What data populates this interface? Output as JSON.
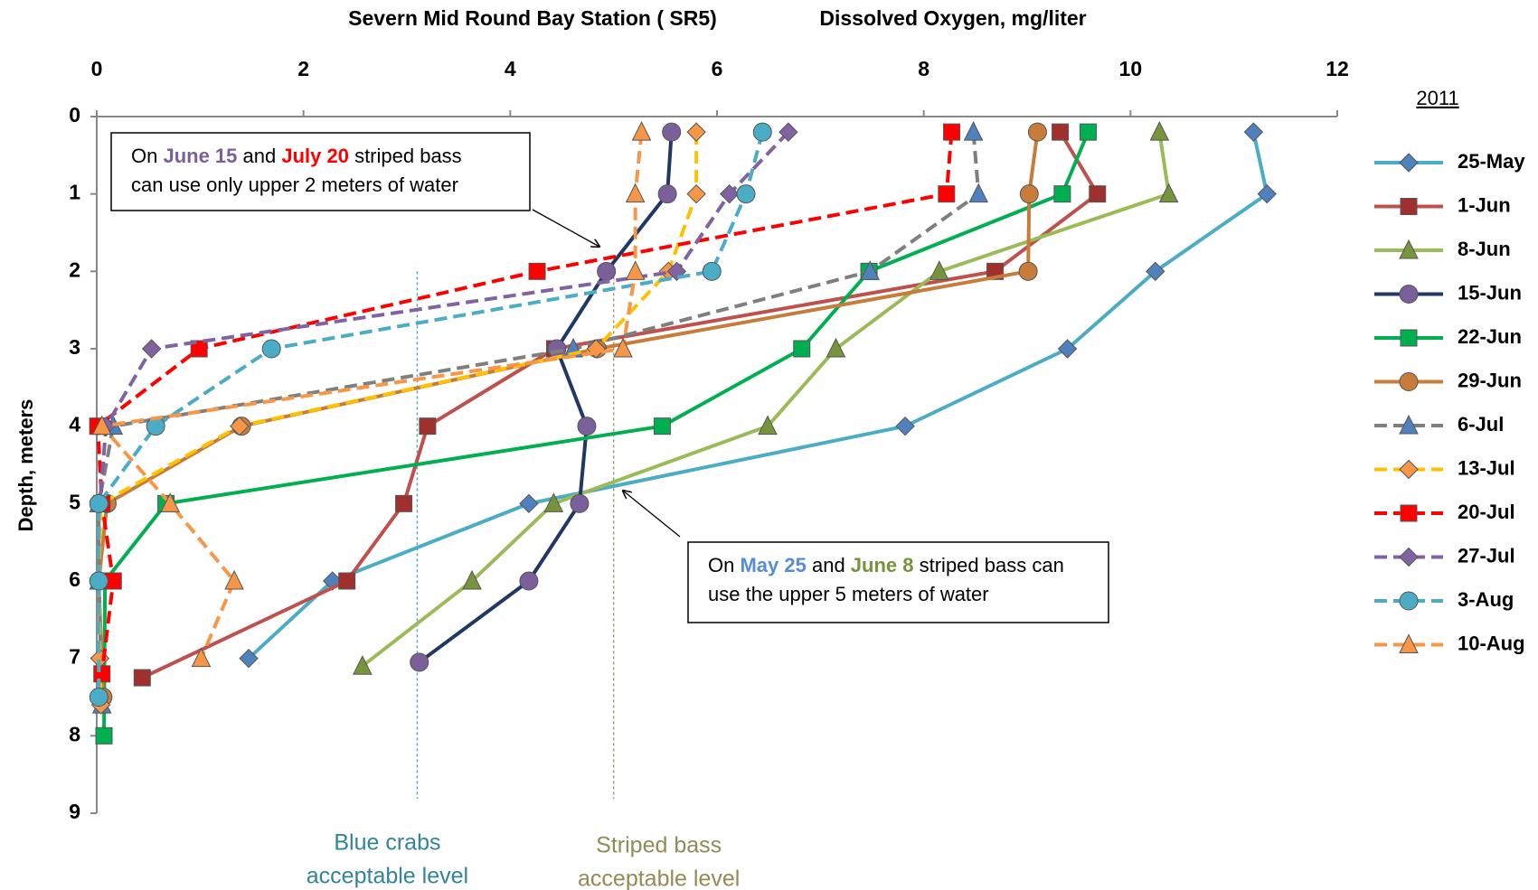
{
  "chart_data": {
    "type": "line",
    "title": "Severn Mid Round Bay Station ( SR5)",
    "x_label": "Dissolved Oxygen, mg/liter",
    "y_label": "Depth, meters",
    "legend_title": "2011",
    "xlim": [
      0,
      12
    ],
    "xticks": [
      0,
      2,
      4,
      6,
      8,
      10,
      12
    ],
    "ylim": [
      0,
      9
    ],
    "yticks": [
      0,
      1,
      2,
      3,
      4,
      5,
      6,
      7,
      8,
      9
    ],
    "y_inverted": true,
    "legend": "right",
    "series": [
      {
        "name": "25-May",
        "color": "#4bacc6",
        "marker_color": "#4f81bd",
        "marker": "diamond",
        "dash": false,
        "x": [
          11.19,
          11.32,
          10.24,
          9.39,
          7.82,
          4.18,
          2.28,
          1.47
        ],
        "y": [
          0.2,
          1,
          2,
          3,
          4,
          5,
          6,
          7
        ]
      },
      {
        "name": "1-Jun",
        "color": "#c0504d",
        "marker_color": "#a0302d",
        "marker": "square",
        "dash": false,
        "x": [
          9.32,
          9.68,
          8.69,
          4.43,
          3.2,
          2.97,
          2.42,
          0.44
        ],
        "y": [
          0.2,
          1,
          2,
          3,
          4,
          5,
          6,
          7.25
        ]
      },
      {
        "name": "8-Jun",
        "color": "#9bbb59",
        "marker_color": "#77933c",
        "marker": "triangle",
        "dash": false,
        "x": [
          10.28,
          10.37,
          8.15,
          7.15,
          6.49,
          4.42,
          3.63,
          2.57
        ],
        "y": [
          0.2,
          1,
          2,
          3,
          4,
          5,
          6,
          7.1
        ]
      },
      {
        "name": "15-Jun",
        "color": "#1f3864",
        "marker_color": "#7a5f9a",
        "marker": "circle",
        "dash": false,
        "x": [
          5.56,
          5.52,
          4.93,
          4.45,
          4.74,
          4.67,
          4.18,
          3.12
        ],
        "y": [
          0.2,
          1,
          2,
          3,
          4,
          5,
          6,
          7.05
        ]
      },
      {
        "name": "22-Jun",
        "color": "#00b050",
        "marker_color": "#00b050",
        "marker": "square",
        "dash": false,
        "x": [
          9.59,
          9.34,
          7.47,
          6.82,
          5.47,
          0.67,
          0.08,
          0.07
        ],
        "y": [
          0.2,
          1,
          2,
          3,
          4,
          5,
          6,
          8
        ]
      },
      {
        "name": "29-Jun",
        "color": "#c77c3a",
        "marker_color": "#c77c3a",
        "marker": "circle",
        "dash": false,
        "x": [
          9.1,
          9.02,
          9.01,
          4.84,
          1.4,
          0.1,
          0.02,
          0.06
        ],
        "y": [
          0.2,
          1,
          2,
          3,
          4,
          5,
          6,
          7.5
        ]
      },
      {
        "name": "6-Jul",
        "color": "#7f7f7f",
        "marker_color": "#4f81bd",
        "marker": "triangle",
        "dash": true,
        "x": [
          8.48,
          8.53,
          7.48,
          4.61,
          0.16,
          0.02,
          0.02,
          0.05
        ],
        "y": [
          0.2,
          1,
          2,
          3,
          4,
          5,
          6,
          7.6
        ]
      },
      {
        "name": "13-Jul",
        "color": "#ffc000",
        "marker_color": "#f79646",
        "marker": "diamond",
        "dash": true,
        "x": [
          5.8,
          5.8,
          5.53,
          4.83,
          1.38,
          0.04,
          0.02,
          0.03,
          0.04
        ],
        "y": [
          0.2,
          1,
          2,
          3,
          4,
          5,
          6,
          7,
          7.6
        ]
      },
      {
        "name": "20-Jul",
        "color": "#ff0000",
        "marker_color": "#ff0000",
        "marker": "square",
        "dash": true,
        "x": [
          8.27,
          8.22,
          4.26,
          0.99,
          0.01,
          0.05,
          0.16,
          0.05
        ],
        "y": [
          0.2,
          1,
          2,
          3,
          4,
          5,
          6,
          7.2
        ]
      },
      {
        "name": "27-Jul",
        "color": "#8064a2",
        "marker_color": "#8064a2",
        "marker": "diamond",
        "dash": true,
        "x": [
          6.69,
          6.12,
          5.61,
          0.53,
          0.09,
          0.03
        ],
        "y": [
          0.2,
          1,
          2,
          3,
          4,
          5
        ]
      },
      {
        "name": "3-Aug",
        "color": "#4bacc6",
        "marker_color": "#4bacc6",
        "marker": "circle",
        "dash": true,
        "x": [
          6.44,
          6.28,
          5.95,
          1.69,
          0.57,
          0.02,
          0.02,
          0.02
        ],
        "y": [
          0.2,
          1,
          2,
          3,
          4,
          5,
          6,
          7.5
        ]
      },
      {
        "name": "10-Aug",
        "color": "#f79646",
        "marker_color": "#f79646",
        "marker": "triangle",
        "dash": true,
        "x": [
          5.27,
          5.21,
          5.21,
          5.09,
          0.05,
          0.71,
          1.33,
          1.01
        ],
        "y": [
          0.2,
          1,
          2,
          3,
          4,
          5,
          6,
          7
        ]
      }
    ],
    "reference_lines": [
      {
        "value": 3.1,
        "color": "#4bacc6",
        "label": [
          "Blue crabs",
          "acceptable level"
        ],
        "label_color": "#31849b"
      },
      {
        "value": 5,
        "color": "#a89a6a",
        "label": [
          "Striped bass",
          "acceptable level"
        ],
        "label_color": "#948a54"
      }
    ],
    "annotations": [
      {
        "lines": [
          [
            {
              "text": "On "
            },
            {
              "text": "June 15",
              "color": "#7a5f9a"
            },
            {
              "text": " and "
            },
            {
              "text": "July 20",
              "color": "#ff0000"
            },
            {
              "text": " striped bass"
            }
          ],
          [
            {
              "text": "can use only upper 2 meters of water"
            }
          ]
        ]
      },
      {
        "lines": [
          [
            {
              "text": "On "
            },
            {
              "text": "May 25",
              "color": "#558ed5"
            },
            {
              "text": " and "
            },
            {
              "text": "June 8",
              "color": "#77933c"
            },
            {
              "text": " striped bass can"
            }
          ],
          [
            {
              "text": "use the upper 5 meters of water"
            }
          ]
        ]
      }
    ]
  }
}
